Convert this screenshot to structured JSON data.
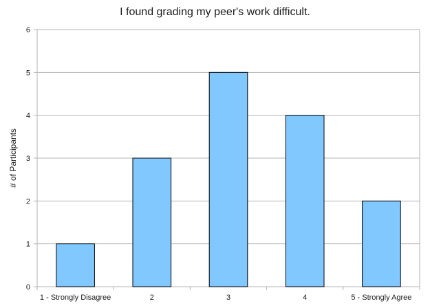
{
  "chart_data": {
    "type": "bar",
    "title": "I found grading my peer's work difficult.",
    "xlabel": "",
    "ylabel": "# of Participants",
    "categories": [
      "1 - Strongly Disagree",
      "2",
      "3",
      "4",
      "5 - Strongly Agree"
    ],
    "values": [
      1,
      3,
      5,
      4,
      2
    ],
    "ylim": [
      0,
      6
    ],
    "yticks": [
      0,
      1,
      2,
      3,
      4,
      5,
      6
    ],
    "grid": true,
    "legend": "none",
    "colors": {
      "bar_fill": "#80c8ff",
      "bar_stroke": "#000000",
      "grid": "#b3b3b3"
    }
  }
}
